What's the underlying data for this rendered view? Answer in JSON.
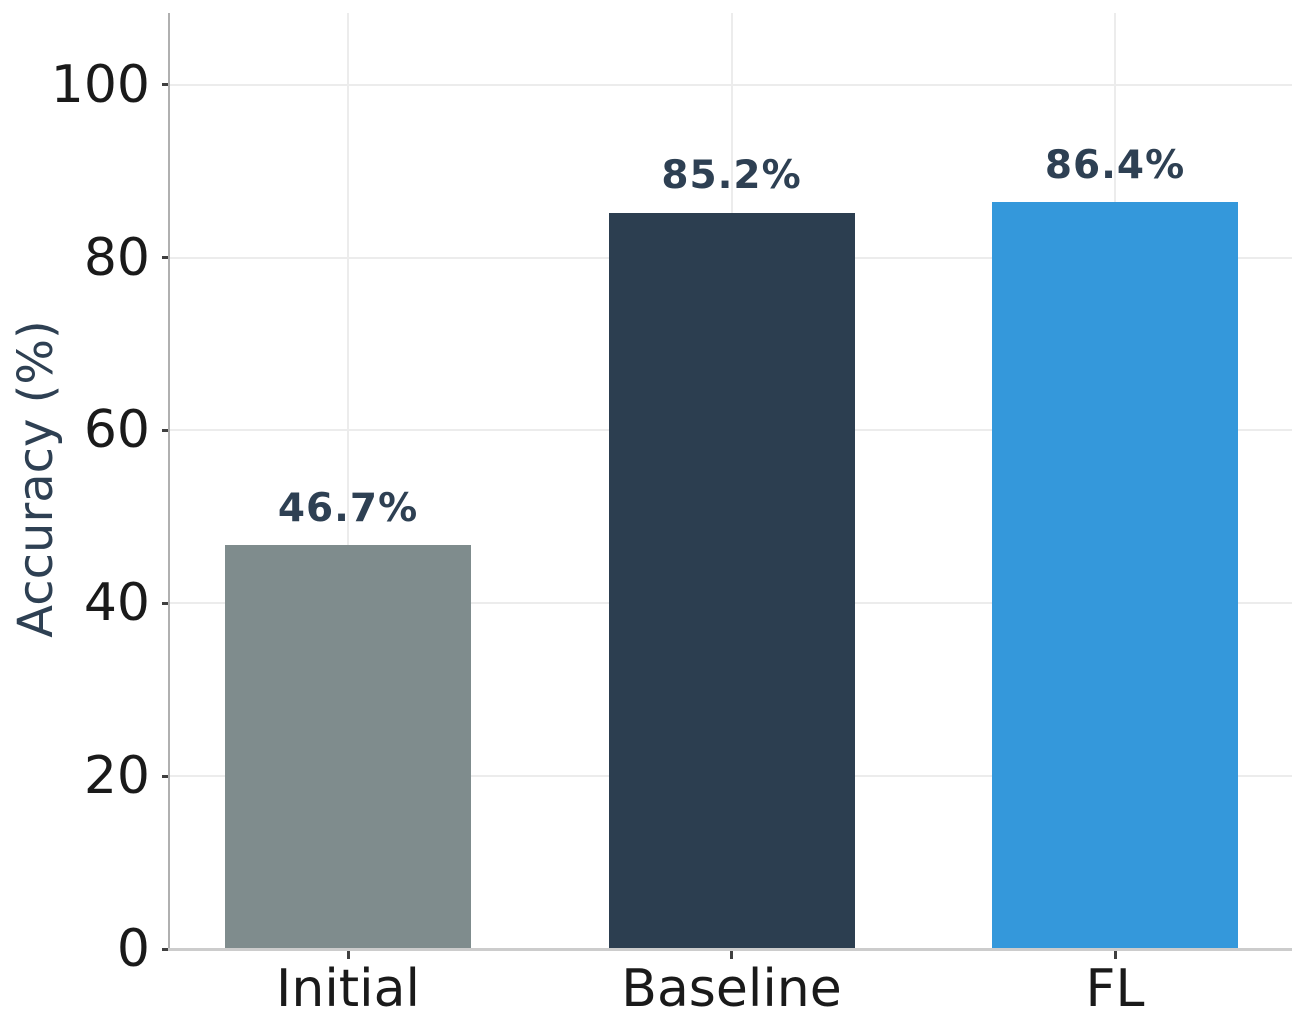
{
  "chart_data": {
    "type": "bar",
    "categories": [
      "Initial",
      "Baseline",
      "FL"
    ],
    "values": [
      46.7,
      85.2,
      86.4
    ],
    "value_labels": [
      "46.7%",
      "85.2%",
      "86.4%"
    ],
    "title": "",
    "xlabel": "",
    "ylabel": "Accuracy (%)",
    "yticks": [
      0,
      20,
      40,
      60,
      80,
      100
    ],
    "ylim": [
      0,
      108.3
    ],
    "grid": true,
    "legend": "none",
    "colors": {
      "bars": [
        "#7f8c8d",
        "#2c3e50",
        "#3498db"
      ],
      "value_label": "#2e4053",
      "axis_label": "#2e4053",
      "tick_label": "#1a1a1a",
      "gridline": "#ececec",
      "spine_left": "#b0b0b0",
      "spine_bottom": "#cccccc",
      "tick_mark": "#404040",
      "background": "#ffffff"
    }
  }
}
